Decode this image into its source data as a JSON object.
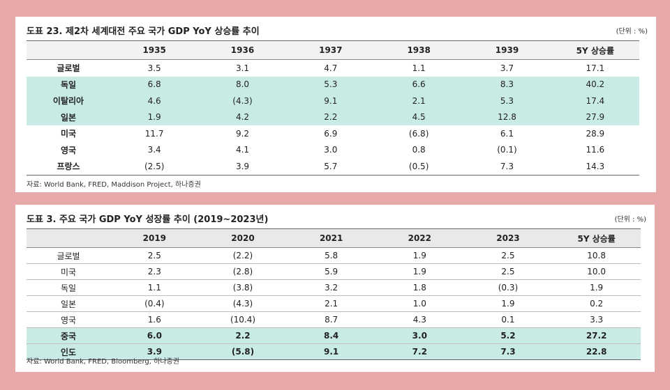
{
  "table1": {
    "title": "도표 23. 제2차 세계대전 주요 국가 GDP YoY 상승률 추이",
    "unit": "(단위 : %)",
    "headers": [
      "",
      "1935",
      "1936",
      "1937",
      "1938",
      "1939",
      "5Y 상승률"
    ],
    "rows": [
      [
        "글로벌",
        "3.5",
        "3.1",
        "4.7",
        "1.1",
        "3.7",
        "17.1"
      ],
      [
        "독일",
        "6.8",
        "8.0",
        "5.3",
        "6.6",
        "8.3",
        "40.2"
      ],
      [
        "이탈리아",
        "4.6",
        "(4.3)",
        "9.1",
        "2.1",
        "5.3",
        "17.4"
      ],
      [
        "일본",
        "1.9",
        "4.2",
        "2.2",
        "4.5",
        "12.8",
        "27.9"
      ],
      [
        "미국",
        "11.7",
        "9.2",
        "6.9",
        "(6.8)",
        "6.1",
        "28.9"
      ],
      [
        "영국",
        "3.4",
        "4.1",
        "3.0",
        "0.8",
        "(0.1)",
        "11.6"
      ],
      [
        "프랑스",
        "(2.5)",
        "3.9",
        "5.7",
        "(0.5)",
        "7.3",
        "14.3"
      ]
    ],
    "source": "자료: World Bank, FRED, Maddison Project, 하나증권",
    "highlight_color": "#c9ebe6"
  },
  "table2": {
    "title": "도표 3. 주요 국가 GDP YoY 성장률 추이 (2019~2023년)",
    "unit": "(단위 : %)",
    "headers": [
      "",
      "2019",
      "2020",
      "2021",
      "2022",
      "2023",
      "5Y 상승률"
    ],
    "rows": [
      [
        "글로벌",
        "2.5",
        "(2.2)",
        "5.8",
        "1.9",
        "2.5",
        "10.8"
      ],
      [
        "미국",
        "2.3",
        "(2.8)",
        "5.9",
        "1.9",
        "2.5",
        "10.0"
      ],
      [
        "독일",
        "1.1",
        "(3.8)",
        "3.2",
        "1.8",
        "(0.3)",
        "1.9"
      ],
      [
        "일본",
        "(0.4)",
        "(4.3)",
        "2.1",
        "1.0",
        "1.9",
        "0.2"
      ],
      [
        "영국",
        "1.6",
        "(10.4)",
        "8.7",
        "4.3",
        "0.1",
        "3.3"
      ],
      [
        "중국",
        "6.0",
        "2.2",
        "8.4",
        "3.0",
        "5.2",
        "27.2"
      ],
      [
        "인도",
        "3.9",
        "(5.8)",
        "9.1",
        "7.2",
        "7.3",
        "22.8"
      ]
    ],
    "source": "자료: World Bank, FRED, Bloomberg, 하나증권",
    "highlight_color": "#c9ebe6"
  },
  "background_color": "#e8a9ab"
}
